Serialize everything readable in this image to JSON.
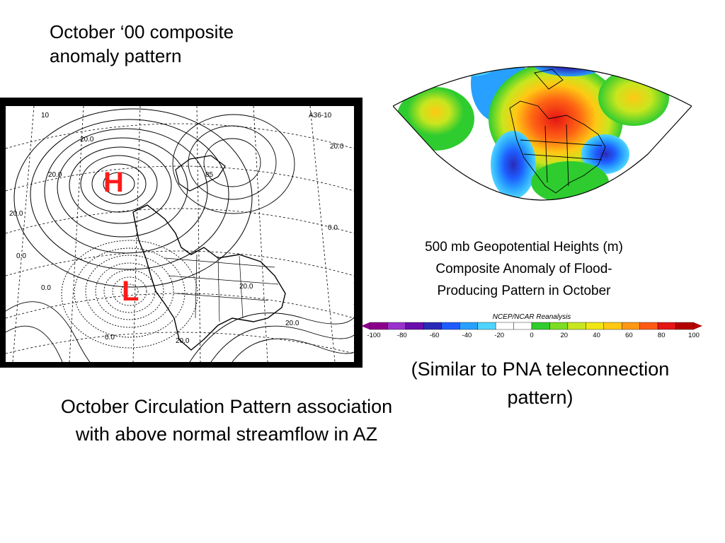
{
  "slide": {
    "title": "October ‘00 composite\nanomaly pattern",
    "left_caption": "October Circulation Pattern association\nwith above normal streamflow in AZ",
    "right_caption": "500 mb Geopotential Heights (m)\nComposite Anomaly of Flood-\nProducing Pattern in October",
    "right_note": "(Similar to PNA teleconnection\npattern)"
  },
  "contour_map": {
    "high_label": "H",
    "low_label": "L",
    "marker_color": "#ff1a1a",
    "corner_label": "A36-10",
    "corner_number": "10",
    "contour_labels": [
      "20.0",
      "20.0",
      "20.0",
      "20.0",
      "0.0",
      "0.0",
      "0.0",
      "20.0",
      "20.0",
      "20.0",
      "0.0",
      "85"
    ]
  },
  "anomaly_map": {
    "colorbar_title": "NCEP/NCAR Reanalysis",
    "colorbar_ticks": [
      "-100",
      "-80",
      "-60",
      "-40",
      "-20",
      "0",
      "20",
      "40",
      "60",
      "80",
      "100"
    ],
    "colorbar_colors": [
      "#8b008b",
      "#9932cc",
      "#6a0dad",
      "#2a2ab8",
      "#1e5cff",
      "#28a0ff",
      "#4fd4ff",
      "#ffffff",
      "#ffffff",
      "#2fcc2f",
      "#7ddc24",
      "#c8e61e",
      "#f0e614",
      "#ffc814",
      "#ff9614",
      "#ff5a14",
      "#e61414",
      "#b40000"
    ]
  }
}
